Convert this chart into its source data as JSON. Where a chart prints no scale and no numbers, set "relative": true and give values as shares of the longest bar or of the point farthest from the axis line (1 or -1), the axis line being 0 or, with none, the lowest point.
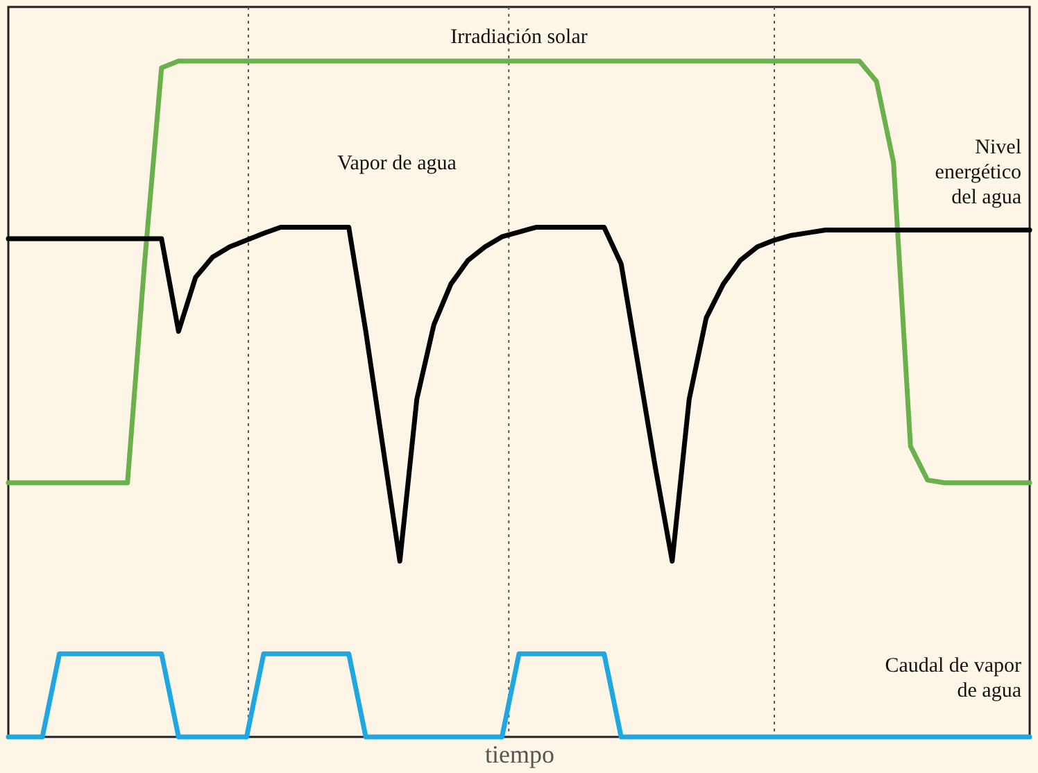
{
  "chart_data": {
    "type": "line",
    "relative": true,
    "xlabel": "tiempo",
    "tick_labels": false,
    "grid": false,
    "legend": false,
    "marker": "none",
    "line_style": "solid",
    "categories": [
      null,
      null,
      null,
      null,
      null,
      null,
      null,
      null,
      null,
      null,
      null,
      null,
      null,
      null,
      null,
      null,
      null,
      null,
      null,
      null,
      null,
      null,
      null,
      null,
      null,
      null,
      null,
      null,
      null,
      null,
      null,
      null,
      null,
      null,
      null,
      null,
      null,
      null,
      null,
      null,
      null,
      null,
      null,
      null,
      null,
      null,
      null,
      null,
      null,
      null,
      null,
      null,
      null,
      null,
      null,
      null,
      null,
      null,
      null,
      null,
      null
    ],
    "series": [
      {
        "name": "Irradiación solar",
        "color": "#6ab04c",
        "values": [
          0.376,
          0.376,
          0.376,
          0.376,
          0.376,
          0.376,
          0.376,
          0.376,
          0.7,
          0.99,
          1,
          1,
          1,
          1,
          1,
          1,
          1,
          1,
          1,
          1,
          1,
          1,
          1,
          1,
          1,
          1,
          1,
          1,
          1,
          1,
          1,
          1,
          1,
          1,
          1,
          1,
          1,
          1,
          1,
          1,
          1,
          1,
          1,
          1,
          1,
          1,
          1,
          1,
          1,
          1,
          1,
          0.97,
          0.85,
          0.43,
          0.38,
          0.376,
          0.376,
          0.376,
          0.376,
          0.376,
          0.376
        ]
      },
      {
        "name": "Nivel energético del agua",
        "color": "#000000",
        "values": [
          0.737,
          0.737,
          0.737,
          0.737,
          0.737,
          0.737,
          0.737,
          0.737,
          0.737,
          0.737,
          0.6,
          0.68,
          0.71,
          0.725,
          0.735,
          0.745,
          0.754,
          0.754,
          0.754,
          0.754,
          0.754,
          0.6,
          0.43,
          0.26,
          0.5,
          0.61,
          0.67,
          0.705,
          0.725,
          0.74,
          0.747,
          0.754,
          0.754,
          0.754,
          0.754,
          0.754,
          0.7,
          0.55,
          0.4,
          0.26,
          0.5,
          0.62,
          0.67,
          0.705,
          0.725,
          0.735,
          0.742,
          0.746,
          0.75,
          0.75,
          0.75,
          0.75,
          0.75,
          0.75,
          0.75,
          0.75,
          0.75,
          0.75,
          0.75,
          0.75,
          0.75
        ]
      },
      {
        "name": "Caudal de vapor de agua",
        "color": "#1ea7e1",
        "values": [
          0,
          0,
          0,
          0.123,
          0.123,
          0.123,
          0.123,
          0.123,
          0.123,
          0.123,
          0,
          0,
          0,
          0,
          0,
          0.123,
          0.123,
          0.123,
          0.123,
          0.123,
          0.123,
          0,
          0,
          0,
          0,
          0,
          0,
          0,
          0,
          0,
          0.123,
          0.123,
          0.123,
          0.123,
          0.123,
          0.123,
          0,
          0,
          0,
          0,
          0,
          0,
          0,
          0,
          0,
          0,
          0,
          0,
          0,
          0,
          0,
          0,
          0,
          0,
          0,
          0,
          0,
          0,
          0,
          0,
          0
        ]
      }
    ],
    "annotations": [
      "Vapor de agua"
    ]
  }
}
